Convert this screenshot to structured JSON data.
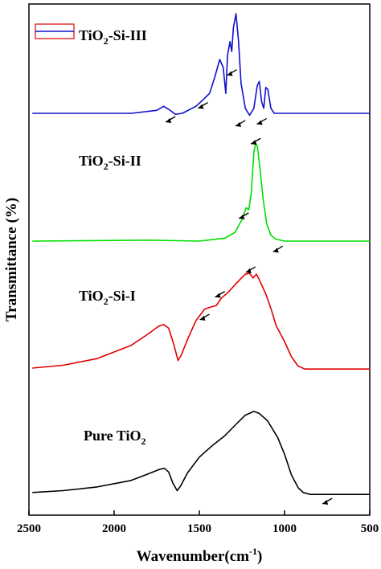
{
  "chart_data": {
    "type": "line",
    "xlabel": "Wavenumber(cm",
    "xlabel_sup": "-1",
    "xlabel_close": ")",
    "ylabel": "Transmittance (%)",
    "xlim": [
      2500,
      500
    ],
    "x_ticks": [
      2500,
      2000,
      1500,
      1000,
      500
    ],
    "grid": false,
    "colors": {
      "pure": "#000000",
      "si1": "#e00000",
      "si2": "#00dd00",
      "si3": "#1010d0",
      "legend_box": "#e00000"
    },
    "series": [
      {
        "name": "Pure TiO",
        "sub": "2",
        "prefix": "",
        "suffix": "",
        "color": "#000000",
        "points": [
          [
            2480,
            0.01
          ],
          [
            2300,
            0.03
          ],
          [
            2100,
            0.07
          ],
          [
            1900,
            0.14
          ],
          [
            1800,
            0.21
          ],
          [
            1730,
            0.26
          ],
          [
            1705,
            0.27
          ],
          [
            1680,
            0.23
          ],
          [
            1655,
            0.11
          ],
          [
            1630,
            0.03
          ],
          [
            1610,
            0.08
          ],
          [
            1570,
            0.22
          ],
          [
            1500,
            0.39
          ],
          [
            1420,
            0.52
          ],
          [
            1350,
            0.62
          ],
          [
            1280,
            0.75
          ],
          [
            1230,
            0.84
          ],
          [
            1180,
            0.88
          ],
          [
            1150,
            0.86
          ],
          [
            1100,
            0.78
          ],
          [
            1040,
            0.6
          ],
          [
            1000,
            0.42
          ],
          [
            960,
            0.2
          ],
          [
            920,
            0.06
          ],
          [
            890,
            0.01
          ],
          [
            850,
            -0.01
          ],
          [
            500,
            -0.01
          ]
        ],
        "arrows": [
          [
            730,
            -0.06
          ]
        ]
      },
      {
        "name": "TiO",
        "sub": "2",
        "prefix": "",
        "suffix": "-Si-I",
        "color": "#e00000",
        "points": [
          [
            2480,
            0.0
          ],
          [
            2300,
            0.03
          ],
          [
            2100,
            0.1
          ],
          [
            1900,
            0.24
          ],
          [
            1800,
            0.36
          ],
          [
            1740,
            0.44
          ],
          [
            1710,
            0.46
          ],
          [
            1680,
            0.42
          ],
          [
            1650,
            0.25
          ],
          [
            1625,
            0.08
          ],
          [
            1605,
            0.14
          ],
          [
            1570,
            0.3
          ],
          [
            1520,
            0.5
          ],
          [
            1470,
            0.62
          ],
          [
            1440,
            0.64
          ],
          [
            1400,
            0.66
          ],
          [
            1370,
            0.74
          ],
          [
            1330,
            0.8
          ],
          [
            1280,
            0.9
          ],
          [
            1230,
            0.99
          ],
          [
            1205,
            1.0
          ],
          [
            1185,
            0.95
          ],
          [
            1165,
            0.99
          ],
          [
            1150,
            0.94
          ],
          [
            1110,
            0.78
          ],
          [
            1080,
            0.63
          ],
          [
            1050,
            0.45
          ],
          [
            1000,
            0.28
          ],
          [
            960,
            0.12
          ],
          [
            920,
            0.02
          ],
          [
            880,
            -0.01
          ],
          [
            500,
            -0.01
          ]
        ],
        "arrows": [
          [
            1450,
            0.56
          ],
          [
            1360,
            0.8
          ],
          [
            1180,
            1.06
          ]
        ]
      },
      {
        "name": "TiO",
        "sub": "2",
        "prefix": "",
        "suffix": "-Si-II",
        "color": "#00dd00",
        "points": [
          [
            2480,
            0.0
          ],
          [
            1800,
            0.01
          ],
          [
            1500,
            0.0
          ],
          [
            1350,
            0.03
          ],
          [
            1290,
            0.09
          ],
          [
            1250,
            0.22
          ],
          [
            1225,
            0.34
          ],
          [
            1210,
            0.32
          ],
          [
            1195,
            0.5
          ],
          [
            1180,
            0.9
          ],
          [
            1170,
            1.0
          ],
          [
            1160,
            0.97
          ],
          [
            1145,
            0.75
          ],
          [
            1125,
            0.42
          ],
          [
            1105,
            0.18
          ],
          [
            1080,
            0.06
          ],
          [
            1050,
            0.02
          ],
          [
            1000,
            0.0
          ],
          [
            500,
            0.0
          ]
        ],
        "arrows": [
          [
            1220,
            0.28
          ],
          [
            1150,
            1.04
          ],
          [
            1020,
            -0.06
          ]
        ]
      },
      {
        "name": "TiO",
        "sub": "2",
        "prefix": "",
        "suffix": "-Si-III",
        "color": "#1010d0",
        "points": [
          [
            2480,
            0.0
          ],
          [
            1900,
            0.0
          ],
          [
            1750,
            0.03
          ],
          [
            1710,
            0.07
          ],
          [
            1680,
            0.04
          ],
          [
            1640,
            -0.01
          ],
          [
            1600,
            0.0
          ],
          [
            1520,
            0.07
          ],
          [
            1470,
            0.15
          ],
          [
            1440,
            0.2
          ],
          [
            1410,
            0.36
          ],
          [
            1380,
            0.54
          ],
          [
            1360,
            0.46
          ],
          [
            1345,
            0.2
          ],
          [
            1335,
            0.58
          ],
          [
            1320,
            0.72
          ],
          [
            1310,
            0.62
          ],
          [
            1300,
            0.86
          ],
          [
            1285,
            1.0
          ],
          [
            1270,
            0.72
          ],
          [
            1255,
            0.3
          ],
          [
            1230,
            0.05
          ],
          [
            1205,
            -0.02
          ],
          [
            1180,
            0.05
          ],
          [
            1160,
            0.28
          ],
          [
            1148,
            0.32
          ],
          [
            1135,
            0.12
          ],
          [
            1122,
            0.05
          ],
          [
            1110,
            0.26
          ],
          [
            1098,
            0.24
          ],
          [
            1080,
            0.05
          ],
          [
            1060,
            0.0
          ],
          [
            500,
            0.0
          ]
        ],
        "arrows": [
          [
            1650,
            -0.04
          ],
          [
            1460,
            0.1
          ],
          [
            1290,
            0.43
          ],
          [
            1240,
            -0.08
          ],
          [
            1115,
            -0.06
          ]
        ]
      }
    ],
    "legend": {
      "position": "top-left",
      "series_index": 3
    }
  }
}
